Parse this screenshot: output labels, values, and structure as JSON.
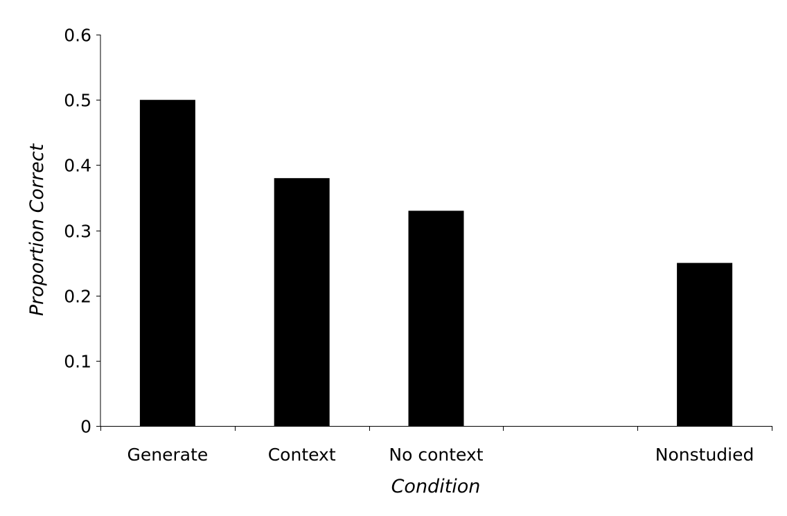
{
  "chart_data": {
    "type": "bar",
    "categories": [
      "Generate",
      "Context",
      "No context",
      "",
      "Nonstudied"
    ],
    "values": [
      0.5,
      0.38,
      0.33,
      null,
      0.25
    ],
    "xlabel": "Condition",
    "ylabel": "Proportion Correct",
    "ylim": [
      0,
      0.6
    ],
    "yticks": [
      "0",
      "0.1",
      "0.2",
      "0.3",
      "0.4",
      "0.5",
      "0.6"
    ],
    "grid": false,
    "legend": "none",
    "bar_color": "#000000"
  }
}
